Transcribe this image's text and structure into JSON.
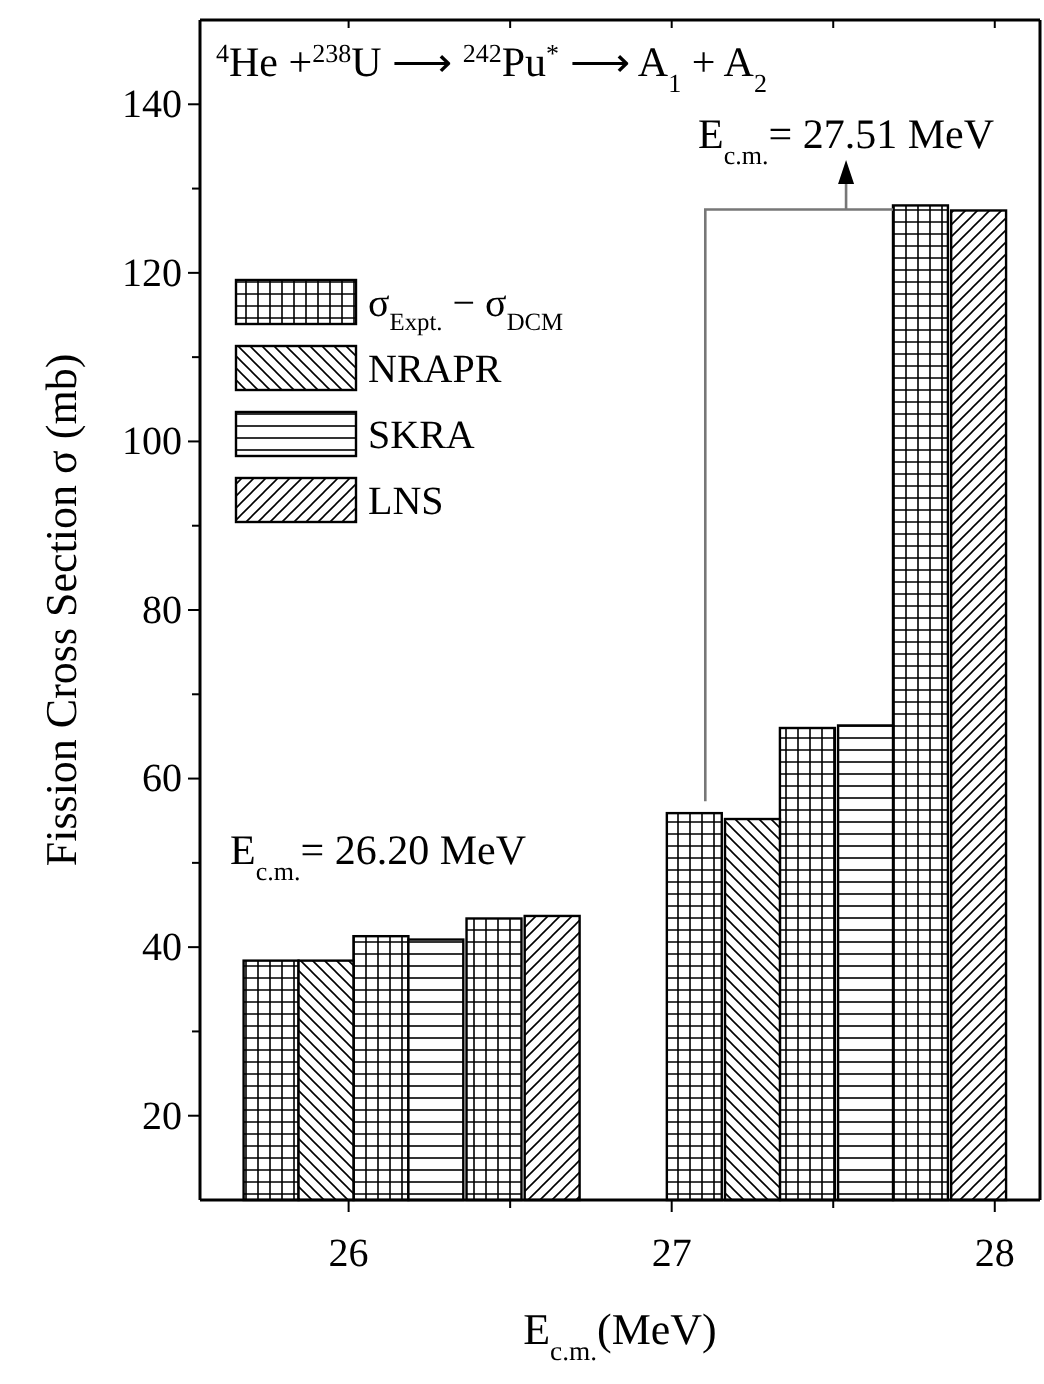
{
  "chart_data": {
    "type": "bar",
    "title": "$^{4}$He +$^{238}$U ⟶ $^{242}$Pu$^{*}$ ⟶ A$_{1}$ + A$_{2}$",
    "xlabel": "E$_{c.m.}$(MeV)",
    "ylabel": "Fission Cross Section σ (mb)",
    "annotations": [
      "E$_{c.m.}$= 27.51 MeV",
      "E$_{c.m.}$= 26.20 MeV"
    ],
    "series": [
      {
        "name": "σ$_{Expt.}$ − σ$_{DCM}$",
        "color": "#000000",
        "x": [
          25.76,
          26.1,
          26.45,
          27.07,
          27.42,
          27.77
        ],
        "values": [
          38.4,
          41.3,
          43.4,
          55.9,
          66.0,
          128.0
        ]
      },
      {
        "name": "NRAPR",
        "color": "#000000",
        "x": [
          25.93,
          27.25
        ],
        "values": [
          38.4,
          55.2
        ]
      },
      {
        "name": "SKRA",
        "color": "#000000",
        "x": [
          26.27,
          27.6
        ],
        "values": [
          40.9,
          66.3
        ]
      },
      {
        "name": "LNS",
        "color": "#000000",
        "x": [
          26.63,
          27.95
        ],
        "values": [
          43.7,
          127.4
        ]
      }
    ],
    "xlim": [
      25.54,
      28.14
    ],
    "xticks": [
      26,
      {
        "value": 26.5,
        "label": null
      },
      27,
      {
        "value": 27.5,
        "label": null
      },
      28
    ],
    "ylim": [
      10,
      150
    ],
    "yticks": [
      20,
      {
        "value": 30,
        "label": null
      },
      40,
      {
        "value": 50,
        "label": null
      },
      60,
      {
        "value": 70,
        "label": null
      },
      80,
      {
        "value": 90,
        "label": null
      },
      100,
      {
        "value": 110,
        "label": null
      },
      120,
      {
        "value": 130,
        "label": null
      },
      140
    ],
    "grid": false,
    "legend": "top left"
  }
}
